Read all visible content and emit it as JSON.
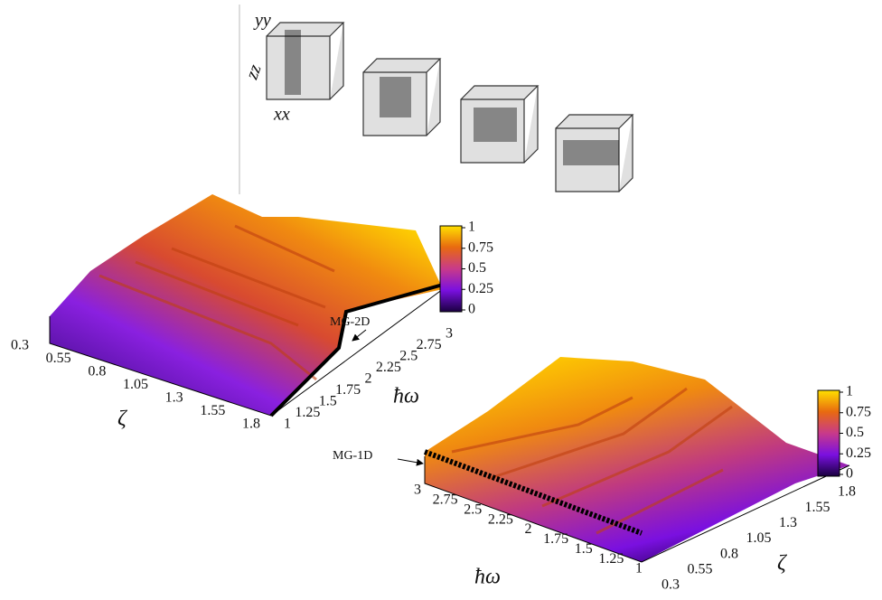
{
  "inset": {
    "axis_labels": [
      "yy",
      "zz",
      "xx"
    ]
  },
  "panels": [
    {
      "annotation": "MG-2D",
      "zeta_label": "ζ",
      "omega_label": "ħω",
      "zeta_ticks": [
        "0.3",
        "0.55",
        "0.8",
        "1.05",
        "1.3",
        "1.55",
        "1.8"
      ],
      "omega_ticks": [
        "1",
        "1.25",
        "1.5",
        "1.75",
        "2",
        "2.25",
        "2.5",
        "2.75",
        "3"
      ],
      "colorbar_ticks": [
        "1",
        "0.75",
        "0.5",
        "0.25",
        "0"
      ]
    },
    {
      "annotation": "MG-1D",
      "zeta_label": "ζ",
      "omega_label": "ħω",
      "zeta_ticks": [
        "0.3",
        "0.55",
        "0.8",
        "1.05",
        "1.3",
        "1.55",
        "1.8"
      ],
      "omega_ticks": [
        "3",
        "2.75",
        "2.5",
        "2.25",
        "2",
        "1.75",
        "1.5",
        "1.25",
        "1"
      ],
      "colorbar_ticks": [
        "1",
        "0.75",
        "0.5",
        "0.25",
        "0"
      ]
    }
  ]
}
